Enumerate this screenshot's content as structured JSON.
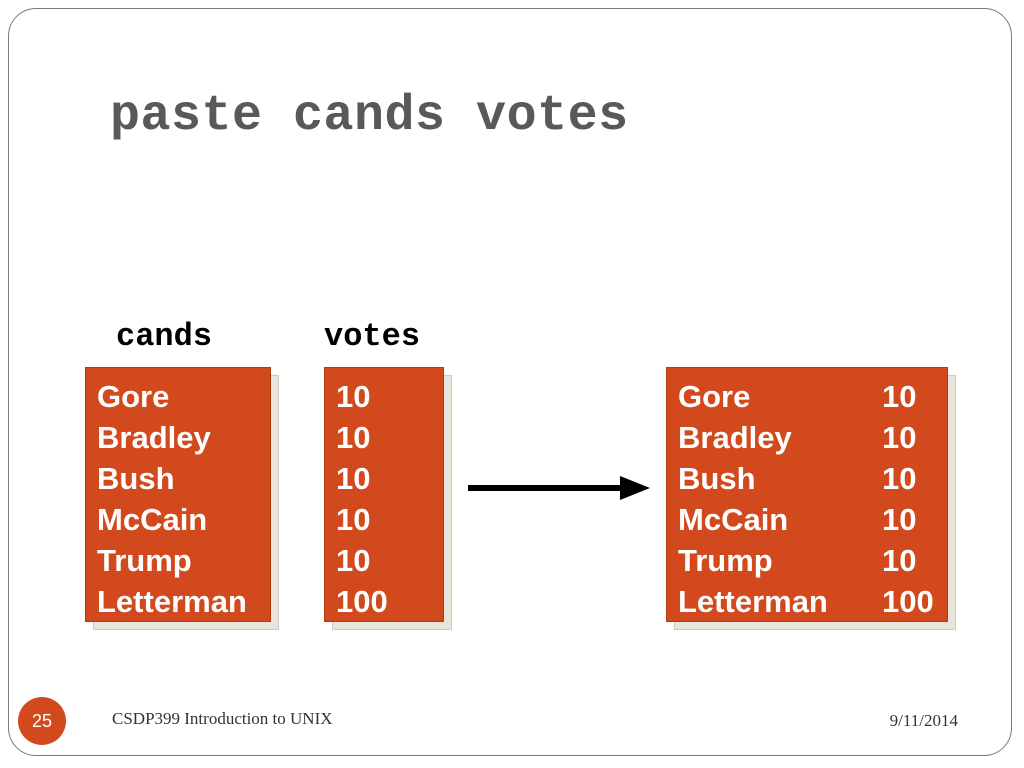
{
  "slide": {
    "title": "paste cands votes",
    "page_number": "25",
    "footer": "CSDP399 Introduction to UNIX",
    "date": "9/11/2014"
  },
  "cands": {
    "label": "cands",
    "lines": [
      "Gore",
      "Bradley",
      "Bush",
      "McCain",
      "Trump",
      "Letterman"
    ]
  },
  "votes": {
    "label": "votes",
    "lines": [
      "10",
      "10",
      "10",
      "10",
      "10",
      "100"
    ]
  },
  "result": {
    "rows": [
      {
        "name": "Gore",
        "votes": "10"
      },
      {
        "name": "Bradley",
        "votes": "10"
      },
      {
        "name": "Bush",
        "votes": "10"
      },
      {
        "name": "McCain",
        "votes": "10"
      },
      {
        "name": "Trump",
        "votes": "10"
      },
      {
        "name": "Letterman",
        "votes": "100"
      }
    ]
  },
  "colors": {
    "box_fill": "#d1491c",
    "box_text": "#ffffff",
    "title_text": "#595959"
  }
}
